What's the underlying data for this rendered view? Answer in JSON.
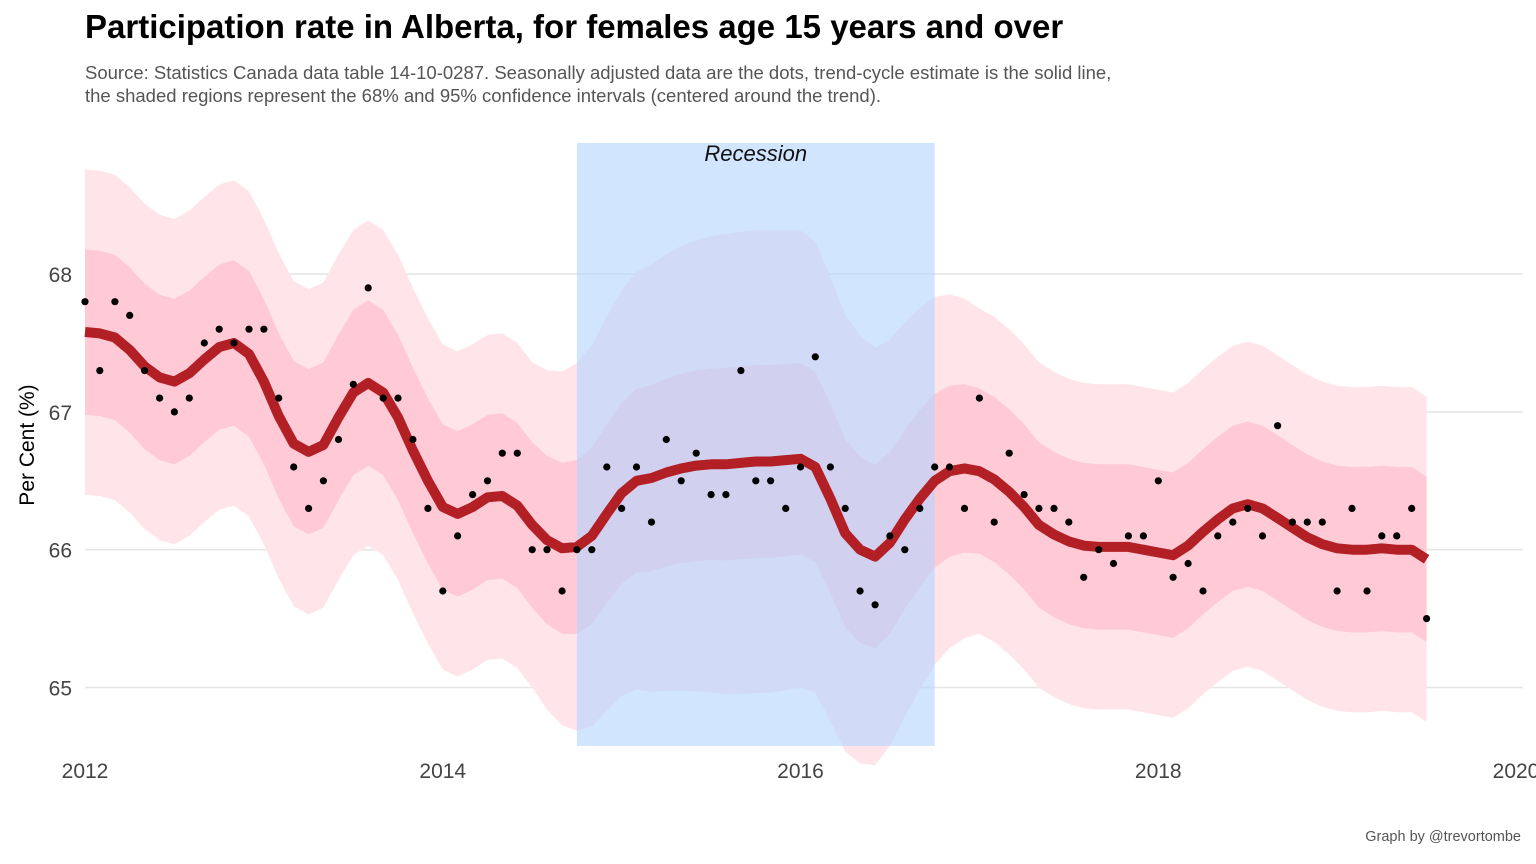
{
  "title": "Participation rate in Alberta, for females age 15 years and over",
  "subtitle_lines": [
    "Source: Statistics Canada data table 14-10-0287. Seasonally adjusted data are the dots, trend-cycle estimate is the solid line,",
    "the shaded regions represent the 68% and 95% confidence intervals (centered around the trend)."
  ],
  "caption": "Graph by @trevortombe",
  "colors": {
    "ci95": "#ffe4e9",
    "ci68": "#ffcad6",
    "trend": "#b22025",
    "recession": "#b3d4ff",
    "points": "#000000",
    "grid": "#e6e6e6"
  },
  "chart_data": {
    "type": "line",
    "title": "Participation rate in Alberta, for females age 15 years and over",
    "xlabel": "",
    "ylabel": "Per Cent (%)",
    "xlim": [
      2012,
      2020
    ],
    "ylim": [
      64.6,
      68.9
    ],
    "x_ticks": [
      2012,
      2014,
      2016,
      2018,
      2020
    ],
    "y_ticks": [
      65,
      66,
      67,
      68
    ],
    "grid": "horizontal",
    "annotation": {
      "text": "Recession",
      "start": 2014.75,
      "end": 2016.75
    },
    "seasonally_adjusted": {
      "x": [
        2012.0,
        2012.083,
        2012.167,
        2012.25,
        2012.333,
        2012.417,
        2012.5,
        2012.583,
        2012.667,
        2012.75,
        2012.833,
        2012.917,
        2013.0,
        2013.083,
        2013.167,
        2013.25,
        2013.333,
        2013.417,
        2013.5,
        2013.583,
        2013.667,
        2013.75,
        2013.833,
        2013.917,
        2014.0,
        2014.083,
        2014.167,
        2014.25,
        2014.333,
        2014.417,
        2014.5,
        2014.583,
        2014.667,
        2014.75,
        2014.833,
        2014.917,
        2015.0,
        2015.083,
        2015.167,
        2015.25,
        2015.333,
        2015.417,
        2015.5,
        2015.583,
        2015.667,
        2015.75,
        2015.833,
        2015.917,
        2016.0,
        2016.083,
        2016.167,
        2016.25,
        2016.333,
        2016.417,
        2016.5,
        2016.583,
        2016.667,
        2016.75,
        2016.833,
        2016.917,
        2017.0,
        2017.083,
        2017.167,
        2017.25,
        2017.333,
        2017.417,
        2017.5,
        2017.583,
        2017.667,
        2017.75,
        2017.833,
        2017.917,
        2018.0,
        2018.083,
        2018.167,
        2018.25,
        2018.333,
        2018.417,
        2018.5,
        2018.583,
        2018.667,
        2018.75,
        2018.833,
        2018.917,
        2019.0,
        2019.083,
        2019.167,
        2019.25,
        2019.333,
        2019.417,
        2019.5
      ],
      "y": [
        67.8,
        67.3,
        67.8,
        67.7,
        67.3,
        67.1,
        67.0,
        67.1,
        67.5,
        67.6,
        67.5,
        67.6,
        67.6,
        67.1,
        66.6,
        66.3,
        66.5,
        66.8,
        67.2,
        67.9,
        67.1,
        67.1,
        66.8,
        66.3,
        65.7,
        66.1,
        66.4,
        66.5,
        66.7,
        66.7,
        66.0,
        66.0,
        65.7,
        66.0,
        66.0,
        66.6,
        66.3,
        66.6,
        66.2,
        66.8,
        66.5,
        66.7,
        66.4,
        66.4,
        67.3,
        66.5,
        66.5,
        66.3,
        66.6,
        67.4,
        66.6,
        66.3,
        65.7,
        65.6,
        66.1,
        66.0,
        66.3,
        66.6,
        66.6,
        66.3,
        67.1,
        66.2,
        66.7,
        66.4,
        66.3,
        66.3,
        66.2,
        65.8,
        66.0,
        65.9,
        66.1,
        66.1,
        66.5,
        65.8,
        65.9,
        65.7,
        66.1,
        66.2,
        66.3,
        66.1,
        66.9,
        66.2,
        66.2,
        66.2,
        65.7,
        66.3,
        65.7,
        66.1,
        66.1,
        66.3,
        65.5
      ]
    },
    "trend": {
      "x": [
        2012.0,
        2012.083,
        2012.167,
        2012.25,
        2012.333,
        2012.417,
        2012.5,
        2012.583,
        2012.667,
        2012.75,
        2012.833,
        2012.917,
        2013.0,
        2013.083,
        2013.167,
        2013.25,
        2013.333,
        2013.417,
        2013.5,
        2013.583,
        2013.667,
        2013.75,
        2013.833,
        2013.917,
        2014.0,
        2014.083,
        2014.167,
        2014.25,
        2014.333,
        2014.417,
        2014.5,
        2014.583,
        2014.667,
        2014.75,
        2014.833,
        2014.917,
        2015.0,
        2015.083,
        2015.167,
        2015.25,
        2015.333,
        2015.417,
        2015.5,
        2015.583,
        2015.667,
        2015.75,
        2015.833,
        2015.917,
        2016.0,
        2016.083,
        2016.167,
        2016.25,
        2016.333,
        2016.417,
        2016.5,
        2016.583,
        2016.667,
        2016.75,
        2016.833,
        2016.917,
        2017.0,
        2017.083,
        2017.167,
        2017.25,
        2017.333,
        2017.417,
        2017.5,
        2017.583,
        2017.667,
        2017.75,
        2017.833,
        2017.917,
        2018.0,
        2018.083,
        2018.167,
        2018.25,
        2018.333,
        2018.417,
        2018.5,
        2018.583,
        2018.667,
        2018.75,
        2018.833,
        2018.917,
        2019.0,
        2019.083,
        2019.167,
        2019.25,
        2019.333,
        2019.417,
        2019.5
      ],
      "y": [
        67.58,
        67.57,
        67.54,
        67.45,
        67.33,
        67.25,
        67.22,
        67.28,
        67.38,
        67.47,
        67.5,
        67.42,
        67.22,
        66.97,
        66.77,
        66.71,
        66.76,
        66.96,
        67.14,
        67.21,
        67.14,
        66.96,
        66.72,
        66.5,
        66.31,
        66.26,
        66.31,
        66.38,
        66.39,
        66.32,
        66.18,
        66.07,
        66.01,
        66.02,
        66.1,
        66.26,
        66.41,
        66.5,
        66.52,
        66.56,
        66.59,
        66.61,
        66.62,
        66.62,
        66.63,
        66.64,
        66.64,
        66.65,
        66.66,
        66.6,
        66.37,
        66.12,
        66.0,
        65.95,
        66.05,
        66.22,
        66.37,
        66.5,
        66.57,
        66.59,
        66.57,
        66.51,
        66.42,
        66.31,
        66.18,
        66.11,
        66.06,
        66.03,
        66.02,
        66.02,
        66.02,
        66.0,
        65.98,
        65.96,
        66.03,
        66.13,
        66.22,
        66.3,
        66.33,
        66.3,
        66.23,
        66.16,
        66.09,
        66.04,
        66.01,
        66.0,
        66.0,
        66.01,
        66.0,
        66.0,
        65.93
      ]
    },
    "ci68_halfwidth": 0.6,
    "ci95_halfwidth": 1.18,
    "ci_recession_extra": 0.5
  }
}
